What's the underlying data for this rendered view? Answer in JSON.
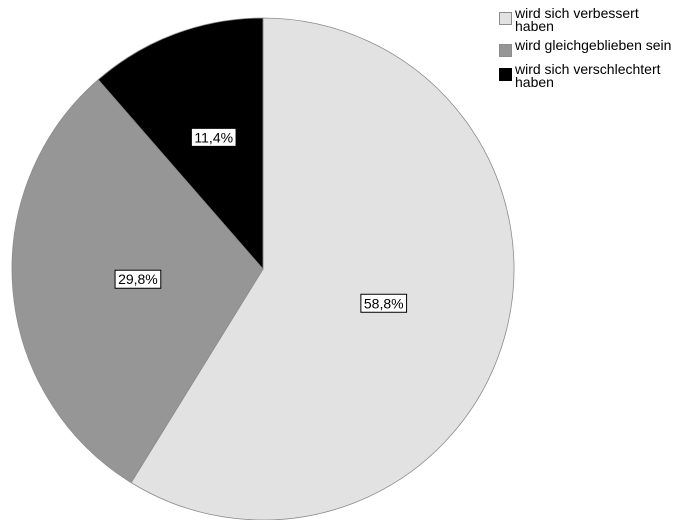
{
  "chart_data": {
    "type": "pie",
    "start_angle_deg": 0,
    "direction": "clockwise",
    "slices": [
      {
        "label": "wird sich verbessert haben",
        "value": 58.8,
        "display": "58,8%",
        "color": "#e2e2e2"
      },
      {
        "label": "wird gleichgeblieben sein",
        "value": 29.8,
        "display": "29,8%",
        "color": "#969696"
      },
      {
        "label": "wird sich verschlechtert haben",
        "value": 11.4,
        "display": "11,4%",
        "color": "#000000"
      }
    ],
    "legend": {
      "position": "top-right",
      "items": [
        {
          "label": "wird sich verbessert haben",
          "color": "#e2e2e2"
        },
        {
          "label": "wird gleichgeblieben sein",
          "color": "#969696"
        },
        {
          "label": "wird sich verschlechtert haben",
          "color": "#000000"
        }
      ]
    },
    "outline_color": "#8c8c8c"
  }
}
